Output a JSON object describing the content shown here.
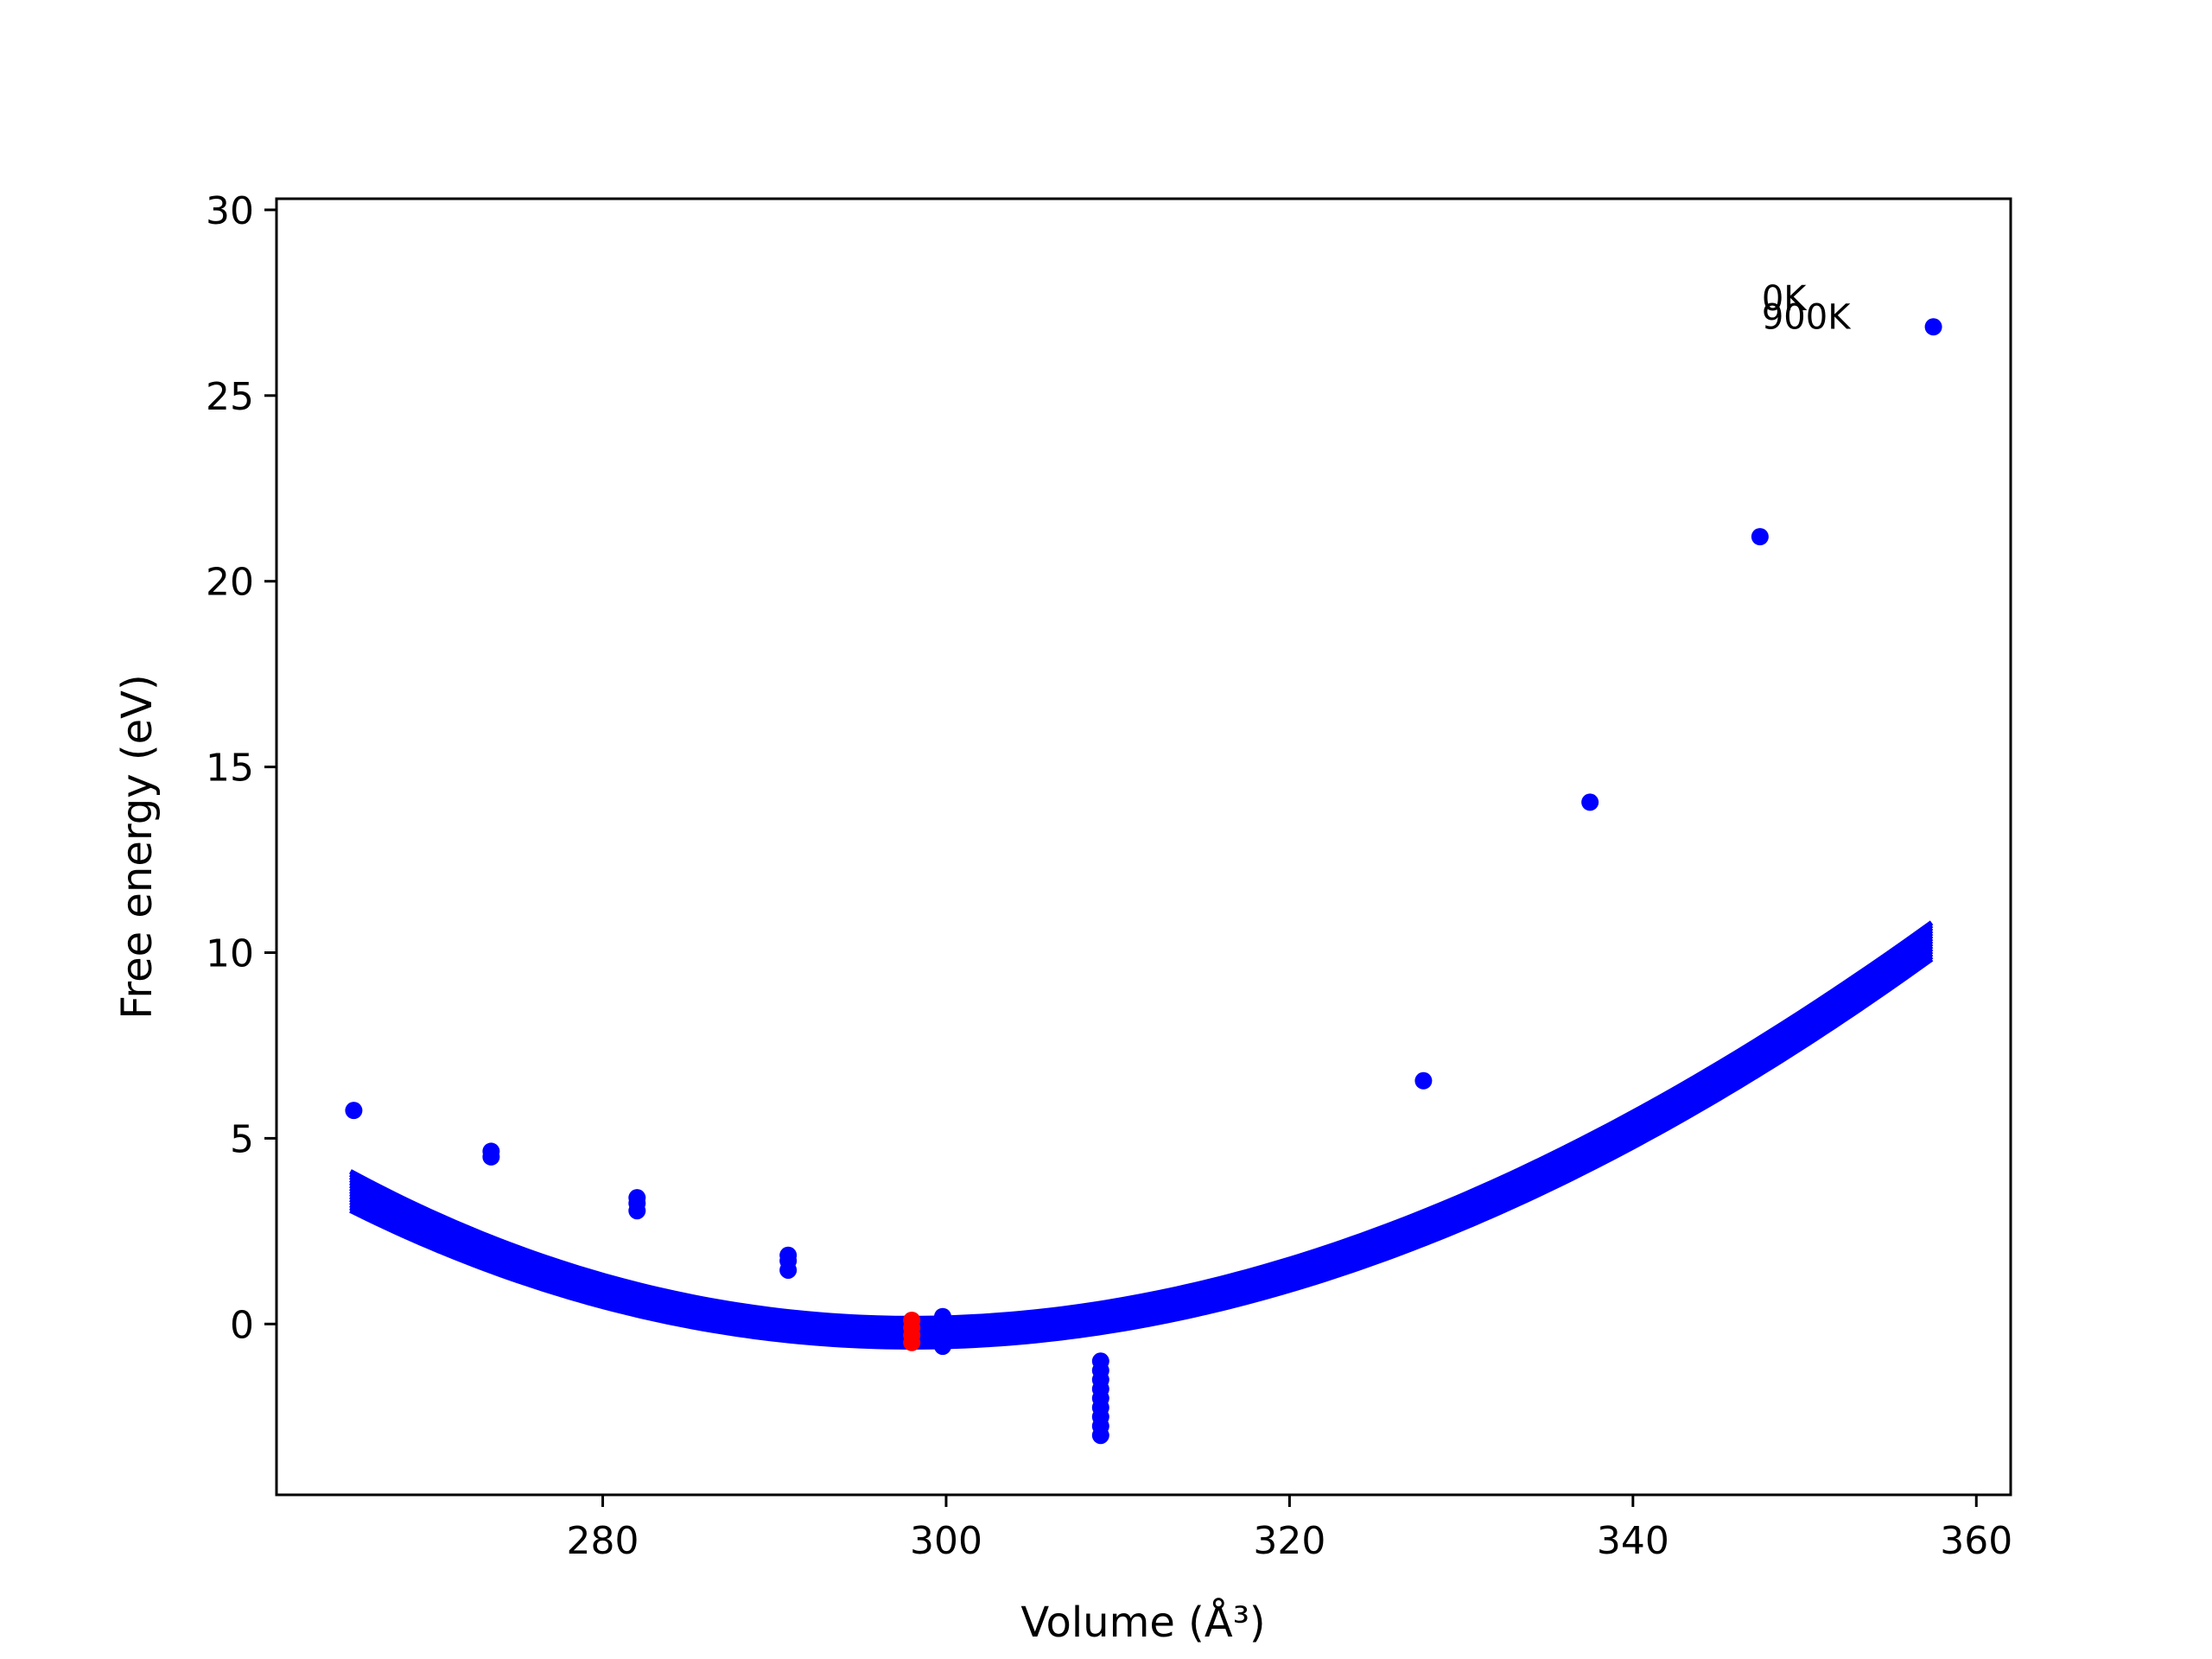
{
  "chart_data": {
    "type": "scatter",
    "title": "",
    "xlabel": "Volume (Å³)",
    "ylabel": "Free energy (eV)",
    "xlim": [
      261,
      362
    ],
    "ylim": [
      -4.6,
      30.3
    ],
    "xticks": [
      280,
      300,
      320,
      340,
      360
    ],
    "yticks": [
      0,
      5,
      10,
      15,
      20,
      25,
      30
    ],
    "grid": false,
    "legend": "none",
    "colors": {
      "curves": "#0000ff",
      "points": "#0000ff",
      "minimum": "#ff0000"
    },
    "fit_curves": {
      "x_range": [
        265.3,
        357.4
      ],
      "t0": {
        "label": "0K",
        "v0": 298.0,
        "e0": 0.15,
        "a": 0.00346,
        "b": -7.4e-06
      },
      "t1": {
        "label": "900K",
        "v0": 298.0,
        "e0": -0.62,
        "a": 0.00327,
        "b": -5.2e-06
      }
    },
    "points": [
      {
        "x": 265.5,
        "y": 5.75
      },
      {
        "x": 273.5,
        "y": 4.65
      },
      {
        "x": 273.5,
        "y": 4.5
      },
      {
        "x": 282.0,
        "y": 3.4
      },
      {
        "x": 282.0,
        "y": 3.25
      },
      {
        "x": 282.0,
        "y": 3.05
      },
      {
        "x": 290.8,
        "y": 1.85
      },
      {
        "x": 290.8,
        "y": 1.7
      },
      {
        "x": 290.8,
        "y": 1.45
      },
      {
        "x": 299.8,
        "y": 0.2
      },
      {
        "x": 299.8,
        "y": 0.0
      },
      {
        "x": 299.8,
        "y": -0.3
      },
      {
        "x": 299.8,
        "y": -0.6
      },
      {
        "x": 309.0,
        "y": -1.0
      },
      {
        "x": 309.0,
        "y": -1.25
      },
      {
        "x": 309.0,
        "y": -1.5
      },
      {
        "x": 309.0,
        "y": -1.75
      },
      {
        "x": 309.0,
        "y": -2.0
      },
      {
        "x": 309.0,
        "y": -2.25
      },
      {
        "x": 309.0,
        "y": -2.5
      },
      {
        "x": 309.0,
        "y": -2.75
      },
      {
        "x": 309.0,
        "y": -3.0
      },
      {
        "x": 318.3,
        "y": 0.9
      },
      {
        "x": 327.8,
        "y": 6.55
      },
      {
        "x": 337.5,
        "y": 14.05
      },
      {
        "x": 347.4,
        "y": 21.2
      },
      {
        "x": 357.5,
        "y": 26.85
      }
    ],
    "minimum_points": [
      {
        "x": 298.0,
        "y": 0.1
      },
      {
        "x": 298.0,
        "y": -0.1
      },
      {
        "x": 298.0,
        "y": -0.3
      },
      {
        "x": 298.0,
        "y": -0.5
      }
    ],
    "annotations": [
      {
        "text": "0K",
        "x": 347.5,
        "y": 27.3
      },
      {
        "text": "900K",
        "x": 347.5,
        "y": 26.8
      }
    ]
  }
}
